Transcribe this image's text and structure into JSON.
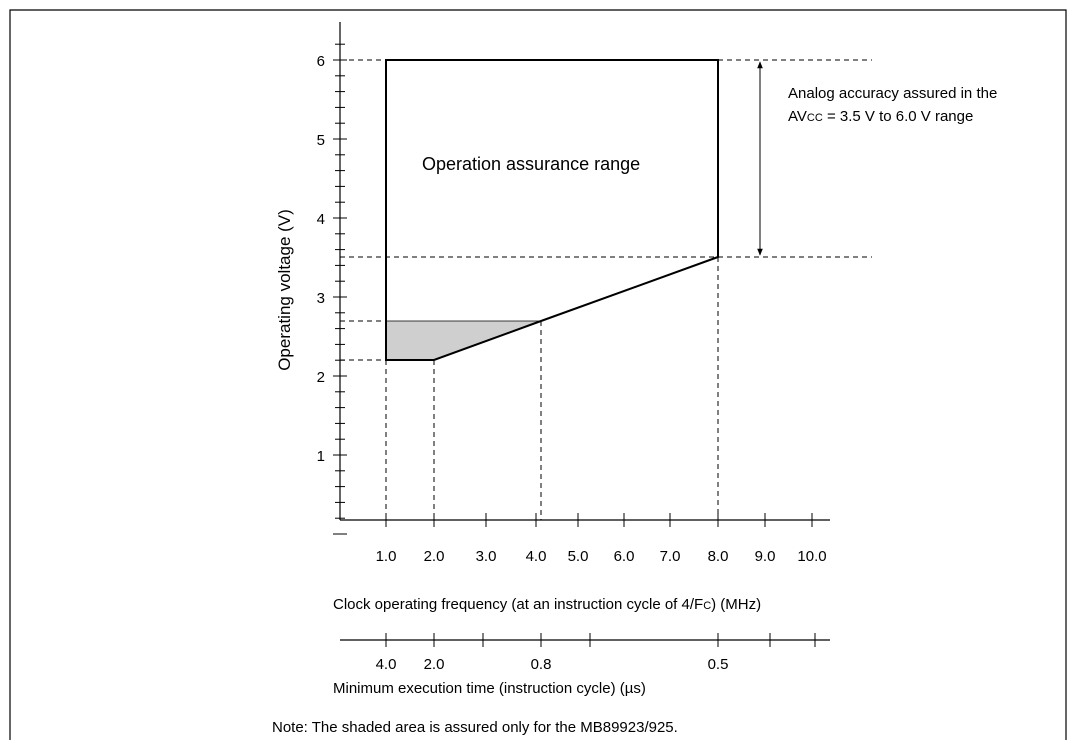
{
  "y_axis": {
    "label": "Operating voltage (V)",
    "ticks": [
      "1",
      "2",
      "3",
      "4",
      "5",
      "6"
    ]
  },
  "x_axis": {
    "ticks": [
      "1.0",
      "2.0",
      "3.0",
      "4.0",
      "5.0",
      "6.0",
      "7.0",
      "8.0",
      "9.0",
      "10.0"
    ],
    "title": [
      "Clock operating frequency (at an instruction cycle of 4/F",
      "C",
      ") (MHz)"
    ]
  },
  "x_axis2": {
    "ticks": [
      "4.0",
      "2.0",
      "0.8",
      "0.5"
    ],
    "title": "Minimum execution time (instruction cycle) (µs)"
  },
  "region_label": "Operation assurance range",
  "annotation": {
    "line1": "Analog accuracy assured in the",
    "line2": [
      "AV",
      "CC",
      " = 3.5 V to 6.0 V range"
    ]
  },
  "note": "Note: The shaded area is assured only for the MB89923/925."
}
